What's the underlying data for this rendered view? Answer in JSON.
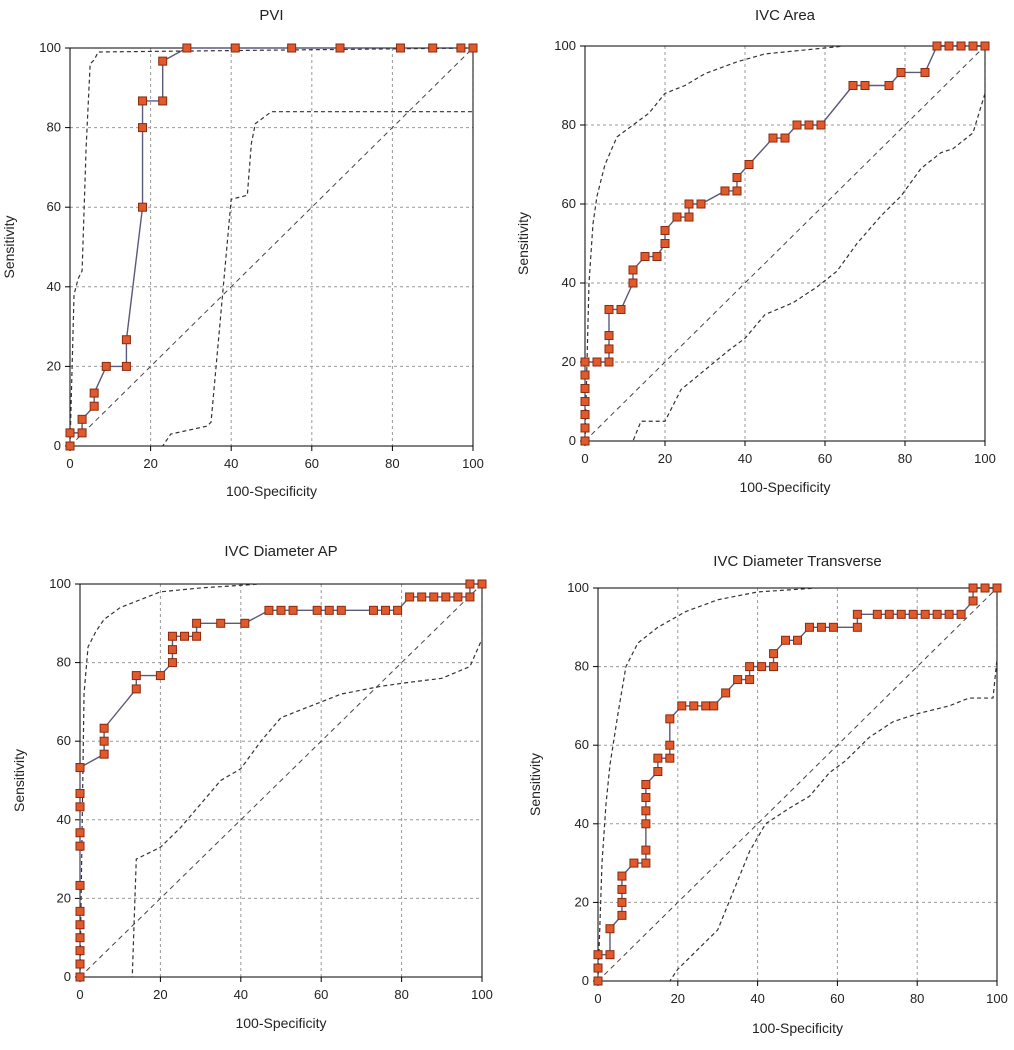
{
  "colors": {
    "curve": "#5a5a7a",
    "marker_fill": "#e05a2b",
    "marker_stroke": "#8a2a10",
    "ci": "#333333",
    "diagonal": "#444444",
    "grid": "#999999",
    "axis": "#000000"
  },
  "chart_data": [
    {
      "type": "line",
      "title": "PVI",
      "xlabel": "100-Specificity",
      "ylabel": "Sensitivity",
      "xlim": [
        0,
        100
      ],
      "ylim": [
        0,
        100
      ],
      "xticks": [
        "0",
        "20",
        "40",
        "60",
        "80",
        "100"
      ],
      "yticks": [
        "0",
        "20",
        "40",
        "60",
        "80",
        "100"
      ],
      "grid": true,
      "series": [
        {
          "name": "ROC curve",
          "x": [
            0,
            0,
            3,
            3,
            6,
            6,
            9,
            14,
            14,
            18,
            18,
            18,
            23,
            23,
            29,
            41,
            55,
            67,
            82,
            90,
            97,
            100
          ],
          "y": [
            0,
            3.3,
            3.3,
            6.7,
            10,
            13.3,
            20,
            20,
            26.7,
            60,
            80,
            86.7,
            86.7,
            96.7,
            100,
            100,
            100,
            100,
            100,
            100,
            100,
            100
          ],
          "markers": true
        },
        {
          "name": "Upper CI",
          "x": [
            0,
            1,
            2,
            3,
            4,
            5,
            6,
            7,
            100
          ],
          "y": [
            0,
            38,
            42,
            44,
            75,
            96,
            97,
            99,
            100
          ]
        },
        {
          "name": "Lower CI",
          "x": [
            0,
            23,
            25,
            34,
            35,
            40,
            44,
            45,
            46,
            50,
            100,
            100
          ],
          "y": [
            0,
            0,
            3,
            5,
            6,
            62,
            63,
            76,
            81,
            84,
            84,
            100
          ]
        }
      ]
    },
    {
      "type": "line",
      "title": "IVC Area",
      "xlabel": "100-Specificity",
      "ylabel": "Sensitivity",
      "xlim": [
        0,
        100
      ],
      "ylim": [
        0,
        100
      ],
      "xticks": [
        "0",
        "20",
        "40",
        "60",
        "80",
        "100"
      ],
      "yticks": [
        "0",
        "20",
        "40",
        "60",
        "80",
        "100"
      ],
      "grid": true,
      "series": [
        {
          "name": "ROC curve",
          "x": [
            0,
            0,
            0,
            0,
            0,
            0,
            0,
            0,
            3,
            6,
            6,
            6,
            6,
            9,
            12,
            12,
            15,
            18,
            20,
            20,
            23,
            26,
            26,
            29,
            35,
            38,
            38,
            41,
            47,
            50,
            53,
            56,
            59,
            67,
            70,
            76,
            79,
            85,
            88,
            91,
            94,
            97,
            100
          ],
          "y": [
            0,
            3.3,
            6.7,
            10,
            13.3,
            16.7,
            20,
            20,
            20,
            20,
            23.3,
            26.7,
            33.3,
            33.3,
            40,
            43.3,
            46.7,
            46.7,
            50,
            53.3,
            56.7,
            56.7,
            60,
            60,
            63.3,
            63.3,
            66.7,
            70,
            76.7,
            76.7,
            80,
            80,
            80,
            90,
            90,
            90,
            93.3,
            93.3,
            100,
            100,
            100,
            100,
            100
          ],
          "markers": true
        },
        {
          "name": "Upper CI",
          "x": [
            0,
            1,
            2,
            3,
            5,
            8,
            12,
            16,
            20,
            25,
            30,
            38,
            45,
            55,
            65,
            80,
            100
          ],
          "y": [
            0,
            40,
            55,
            62,
            70,
            77,
            80,
            83,
            88,
            90,
            93,
            96,
            98,
            99,
            100,
            100,
            100
          ]
        },
        {
          "name": "Lower CI",
          "x": [
            0,
            12,
            14,
            20,
            24,
            30,
            36,
            40,
            45,
            52,
            58,
            63,
            68,
            74,
            79,
            84,
            89,
            92,
            97,
            100,
            100
          ],
          "y": [
            0,
            0,
            5,
            5,
            13,
            18,
            23,
            26,
            32,
            35,
            39,
            43,
            50,
            57,
            62,
            69,
            73,
            74,
            78,
            88,
            100
          ]
        }
      ]
    },
    {
      "type": "line",
      "title": "IVC Diameter AP",
      "xlabel": "100-Specificity",
      "ylabel": "Sensitivity",
      "xlim": [
        0,
        100
      ],
      "ylim": [
        0,
        100
      ],
      "xticks": [
        "0",
        "20",
        "40",
        "60",
        "80",
        "100"
      ],
      "yticks": [
        "0",
        "20",
        "40",
        "60",
        "80",
        "100"
      ],
      "grid": true,
      "series": [
        {
          "name": "ROC curve",
          "x": [
            0,
            0,
            0,
            0,
            0,
            0,
            0,
            0,
            0,
            0,
            0,
            0,
            0,
            0,
            6,
            6,
            6,
            14,
            14,
            20,
            23,
            23,
            23,
            26,
            29,
            29,
            35,
            41,
            47,
            50,
            53,
            59,
            62,
            65,
            73,
            76,
            79,
            82,
            85,
            88,
            91,
            94,
            97,
            97,
            100
          ],
          "y": [
            0,
            3.3,
            6.7,
            10,
            13.3,
            16.7,
            23.3,
            33.3,
            36.7,
            43.3,
            46.7,
            53.3,
            53.3,
            53.3,
            56.7,
            60,
            63.3,
            73.3,
            76.7,
            76.7,
            80,
            83.3,
            86.7,
            86.7,
            86.7,
            90,
            90,
            90,
            93.3,
            93.3,
            93.3,
            93.3,
            93.3,
            93.3,
            93.3,
            93.3,
            93.3,
            96.7,
            96.7,
            96.7,
            96.7,
            96.7,
            96.7,
            100,
            100
          ],
          "markers": true
        },
        {
          "name": "Upper CI",
          "x": [
            0,
            1,
            2,
            4,
            6,
            10,
            15,
            20,
            30,
            45,
            60,
            80,
            100
          ],
          "y": [
            0,
            72,
            84,
            88,
            91,
            94,
            96,
            98,
            99,
            100,
            100,
            100,
            100
          ]
        },
        {
          "name": "Lower CI",
          "x": [
            0,
            13,
            14,
            20,
            25,
            30,
            35,
            40,
            45,
            50,
            55,
            60,
            65,
            70,
            75,
            82,
            90,
            97,
            100,
            100
          ],
          "y": [
            0,
            0,
            30,
            33,
            38,
            44,
            50,
            53,
            60,
            66,
            68,
            70,
            72,
            73,
            74,
            75,
            76,
            79,
            86,
            100
          ]
        }
      ]
    },
    {
      "type": "line",
      "title": "IVC Diameter Transverse",
      "xlabel": "100-Specificity",
      "ylabel": "Sensitivity",
      "xlim": [
        0,
        100
      ],
      "ylim": [
        0,
        100
      ],
      "xticks": [
        "0",
        "20",
        "40",
        "60",
        "80",
        "100"
      ],
      "yticks": [
        "0",
        "20",
        "40",
        "60",
        "80",
        "100"
      ],
      "grid": true,
      "series": [
        {
          "name": "ROC curve",
          "x": [
            0,
            0,
            0,
            3,
            3,
            6,
            6,
            6,
            6,
            9,
            12,
            12,
            12,
            12,
            12,
            12,
            15,
            15,
            18,
            18,
            18,
            21,
            24,
            27,
            29,
            32,
            35,
            38,
            38,
            41,
            44,
            44,
            47,
            50,
            53,
            56,
            59,
            65,
            65,
            70,
            73,
            76,
            79,
            82,
            85,
            88,
            91,
            94,
            94,
            97,
            100
          ],
          "y": [
            0,
            3.3,
            6.7,
            6.7,
            13.3,
            16.7,
            20,
            23.3,
            26.7,
            30,
            30,
            33.3,
            40,
            43.3,
            46.7,
            50,
            53.3,
            56.7,
            56.7,
            60,
            66.7,
            70,
            70,
            70,
            70,
            73.3,
            76.7,
            76.7,
            80,
            80,
            80,
            83.3,
            86.7,
            86.7,
            90,
            90,
            90,
            90,
            93.3,
            93.3,
            93.3,
            93.3,
            93.3,
            93.3,
            93.3,
            93.3,
            93.3,
            96.7,
            100,
            100,
            100
          ],
          "markers": true
        },
        {
          "name": "Upper CI",
          "x": [
            0,
            1,
            2,
            3,
            5,
            7,
            10,
            15,
            22,
            30,
            40,
            55,
            70,
            85,
            100
          ],
          "y": [
            0,
            30,
            45,
            55,
            68,
            80,
            86,
            90,
            94,
            97,
            99,
            100,
            100,
            100,
            100
          ]
        },
        {
          "name": "Lower CI",
          "x": [
            0,
            18,
            20,
            25,
            30,
            32,
            38,
            42,
            48,
            53,
            58,
            62,
            68,
            74,
            80,
            88,
            93,
            99,
            100,
            100
          ],
          "y": [
            0,
            0,
            3,
            8,
            13,
            18,
            33,
            40,
            44,
            47,
            53,
            56,
            62,
            66,
            68,
            70,
            72,
            72,
            82,
            100
          ]
        }
      ]
    }
  ]
}
